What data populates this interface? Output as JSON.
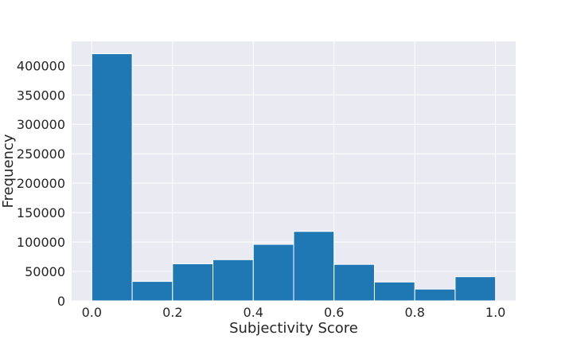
{
  "chart_data": {
    "type": "bar",
    "subtype": "histogram",
    "title": "",
    "xlabel": "Subjectivity Score",
    "ylabel": "Frequency",
    "bin_edges": [
      0.0,
      0.1,
      0.2,
      0.3,
      0.4,
      0.5,
      0.6,
      0.7,
      0.8,
      0.9,
      1.0
    ],
    "values": [
      420000,
      33000,
      63000,
      70000,
      96000,
      118000,
      62000,
      32000,
      20000,
      41000
    ],
    "xlim": [
      -0.05,
      1.05
    ],
    "ylim": [
      0,
      441000
    ],
    "xticks": [
      0.0,
      0.2,
      0.4,
      0.6,
      0.8,
      1.0
    ],
    "xtick_labels": [
      "0.0",
      "0.2",
      "0.4",
      "0.6",
      "0.8",
      "1.0"
    ],
    "yticks": [
      0,
      50000,
      100000,
      150000,
      200000,
      250000,
      300000,
      350000,
      400000
    ],
    "ytick_labels": [
      "0",
      "50000",
      "100000",
      "150000",
      "200000",
      "250000",
      "300000",
      "350000",
      "400000"
    ],
    "grid": true,
    "colors": {
      "bar": "#1f77b4",
      "bar_edge": "#ffffff",
      "plot_background": "#eaeaf2",
      "grid": "#ffffff"
    }
  }
}
